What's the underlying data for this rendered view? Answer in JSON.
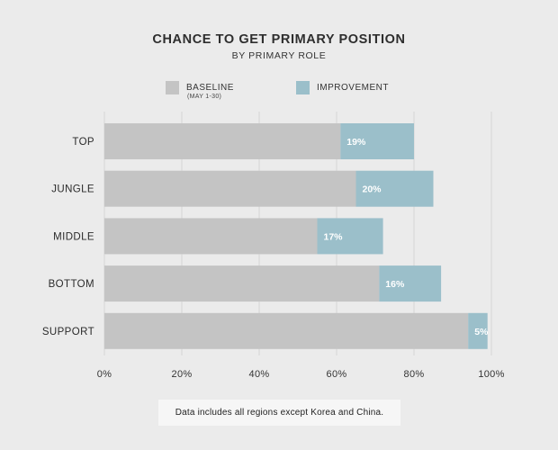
{
  "chart_data": {
    "type": "bar",
    "orientation": "horizontal",
    "stacked": true,
    "title": "CHANCE TO GET PRIMARY POSITION",
    "subtitle": "BY PRIMARY ROLE",
    "categories": [
      "TOP",
      "JUNGLE",
      "MIDDLE",
      "BOTTOM",
      "SUPPORT"
    ],
    "series": [
      {
        "name": "BASELINE",
        "note": "(MAY 1-30)",
        "color": "#c4c4c4",
        "values": [
          61,
          65,
          55,
          71,
          94
        ]
      },
      {
        "name": "IMPROVEMENT",
        "color": "#9bbfca",
        "values": [
          19,
          20,
          17,
          16,
          5
        ]
      }
    ],
    "data_labels": [
      "19%",
      "20%",
      "17%",
      "16%",
      "5%"
    ],
    "xlim": [
      0,
      100
    ],
    "xticks": [
      0,
      20,
      40,
      60,
      80,
      100
    ],
    "xtick_labels": [
      "0%",
      "20%",
      "40%",
      "60%",
      "80%",
      "100%"
    ],
    "grid": true,
    "legend_position": "top-center"
  },
  "footnote": "Data includes all regions except Korea and China."
}
